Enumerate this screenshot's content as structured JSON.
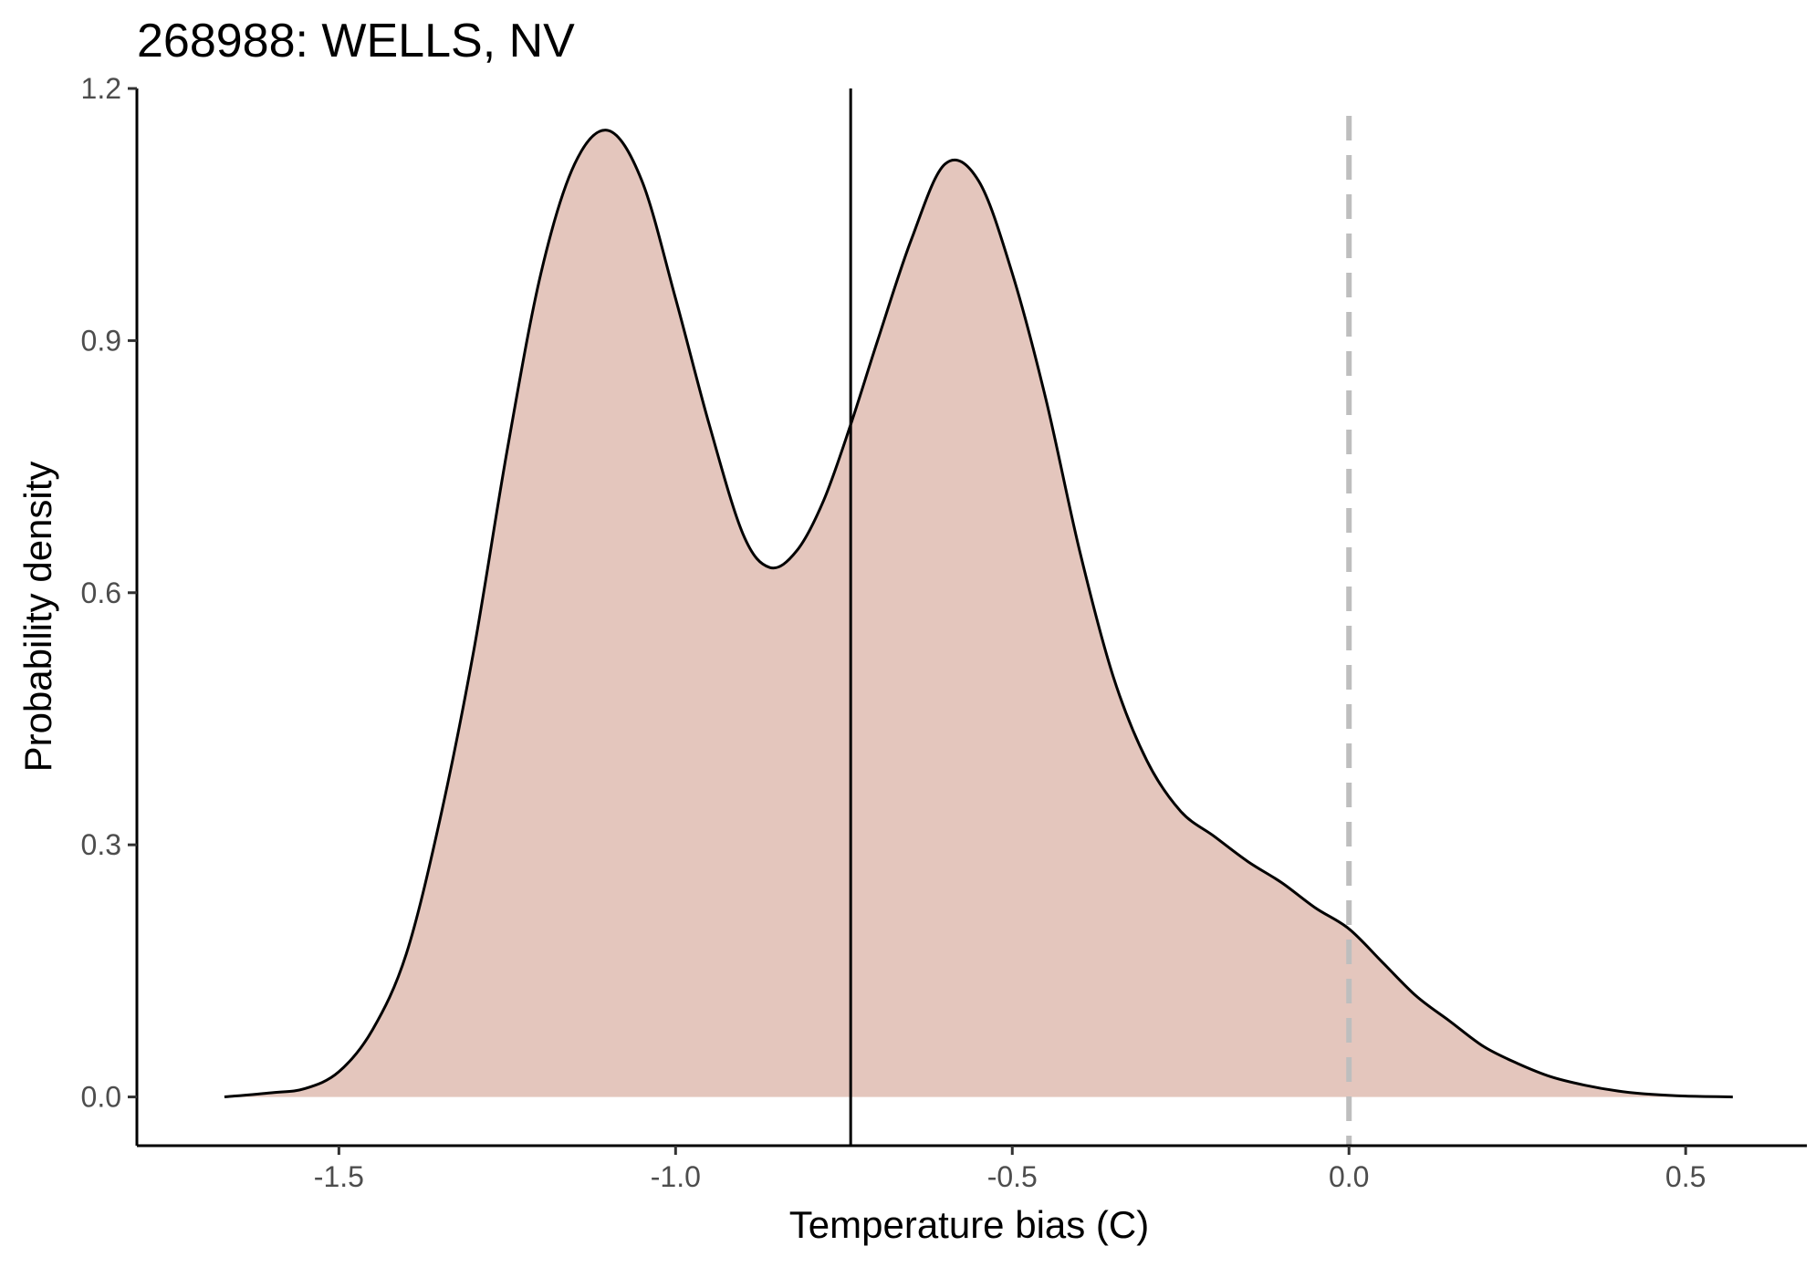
{
  "chart_data": {
    "type": "area",
    "title": "268988: WELLS, NV",
    "xlabel": "Temperature bias (C)",
    "ylabel": "Probability density",
    "xlim": [
      -1.8,
      0.68
    ],
    "ylim": [
      -0.058,
      1.2
    ],
    "xticks": [
      -1.5,
      -1.0,
      -0.5,
      0.0,
      0.5
    ],
    "xtick_labels": [
      "-1.5",
      "-1.0",
      "-0.5",
      "0.0",
      "0.5"
    ],
    "yticks": [
      0.0,
      0.3,
      0.6,
      0.9,
      1.2
    ],
    "ytick_labels": [
      "0.0",
      "0.3",
      "0.6",
      "0.9",
      "1.2"
    ],
    "grid": false,
    "fill_color": "#e4c6bd",
    "line_color": "#000000",
    "reference_lines": [
      {
        "kind": "solid",
        "x": -0.74,
        "color": "#000000"
      },
      {
        "kind": "dashed",
        "x": 0.0,
        "color": "#bebebe"
      }
    ],
    "series": [
      {
        "x": [
          -1.67,
          -1.6,
          -1.55,
          -1.5,
          -1.45,
          -1.4,
          -1.35,
          -1.3,
          -1.25,
          -1.2,
          -1.15,
          -1.1,
          -1.05,
          -1.0,
          -0.95,
          -0.9,
          -0.86,
          -0.82,
          -0.78,
          -0.74,
          -0.7,
          -0.65,
          -0.6,
          -0.55,
          -0.5,
          -0.45,
          -0.4,
          -0.35,
          -0.3,
          -0.25,
          -0.2,
          -0.15,
          -0.1,
          -0.05,
          0.0,
          0.05,
          0.1,
          0.15,
          0.2,
          0.25,
          0.3,
          0.35,
          0.4,
          0.45,
          0.5,
          0.57
        ],
        "y": [
          0.0,
          0.005,
          0.01,
          0.03,
          0.08,
          0.17,
          0.33,
          0.53,
          0.77,
          0.98,
          1.11,
          1.15,
          1.09,
          0.95,
          0.8,
          0.67,
          0.63,
          0.65,
          0.71,
          0.8,
          0.9,
          1.02,
          1.11,
          1.09,
          0.98,
          0.83,
          0.65,
          0.5,
          0.4,
          0.34,
          0.31,
          0.28,
          0.255,
          0.225,
          0.2,
          0.16,
          0.12,
          0.09,
          0.06,
          0.04,
          0.024,
          0.014,
          0.007,
          0.003,
          0.001,
          0.0
        ]
      }
    ]
  }
}
